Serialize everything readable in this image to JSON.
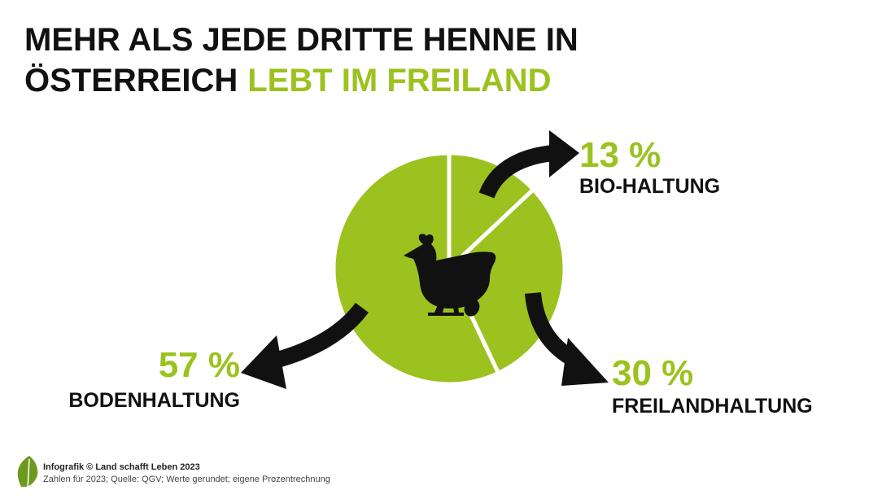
{
  "chart_data": {
    "type": "pie",
    "title": [
      "MEHR ALS JEDE DRITTE HENNE IN",
      "ÖSTERREICH"
    ],
    "title_highlight": "LEBT IM FREILAND",
    "categories": [
      "BIO-HALTUNG",
      "FREILANDHALTUNG",
      "BODENHALTUNG"
    ],
    "values": [
      13,
      30,
      57
    ],
    "value_labels": [
      "13 %",
      "30 %",
      "57 %"
    ],
    "color": "#9cc21f",
    "footer": [
      "Infografik © Land schafft Leben 2023",
      "Zahlen für 2023; Quelle: QGV; Werte gerundet; eigene Prozentrechnung"
    ]
  }
}
